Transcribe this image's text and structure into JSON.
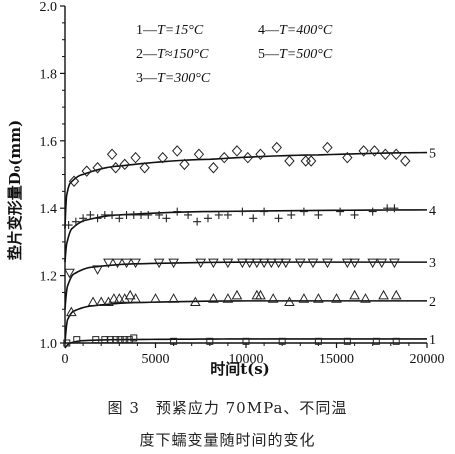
{
  "chart_data": {
    "type": "scatter",
    "xlabel": "时间t(s)",
    "ylabel": "垫片变形量D₀(mm)",
    "xlim": [
      0,
      20000
    ],
    "ylim": [
      1.0,
      2.0
    ],
    "x_ticks": [
      0,
      5000,
      10000,
      15000,
      20000
    ],
    "x_tick_labels": [
      "0",
      "5000",
      "10000",
      "15000",
      "20000"
    ],
    "y_ticks": [
      1.0,
      1.2,
      1.4,
      1.6,
      1.8,
      2.0
    ],
    "y_tick_labels": [
      "1.0",
      "1.2",
      "1.4",
      "1.6",
      "1.8",
      "2.0"
    ],
    "grid": false,
    "legend_position": "top",
    "series": [
      {
        "name": "1—T=15°C",
        "label": "1",
        "marker": "square",
        "points": [
          [
            100,
            1.0
          ],
          [
            650,
            1.01
          ],
          [
            1700,
            1.01
          ],
          [
            2200,
            1.01
          ],
          [
            2500,
            1.01
          ],
          [
            2800,
            1.01
          ],
          [
            3050,
            1.01
          ],
          [
            3300,
            1.01
          ],
          [
            3550,
            1.01
          ],
          [
            3800,
            1.015
          ],
          [
            6000,
            1.005
          ],
          [
            8000,
            1.005
          ],
          [
            10000,
            1.005
          ],
          [
            12000,
            1.005
          ],
          [
            14000,
            1.005
          ],
          [
            15600,
            1.005
          ],
          [
            17200,
            1.005
          ],
          [
            18300,
            1.005
          ]
        ],
        "curve": [
          [
            0,
            0.985
          ],
          [
            300,
            1.0
          ],
          [
            1000,
            1.007
          ],
          [
            3000,
            1.01
          ],
          [
            10000,
            1.012
          ],
          [
            20000,
            1.012
          ]
        ]
      },
      {
        "name": "2—T≈150°C",
        "label": "2",
        "marker": "triangle-up",
        "points": [
          [
            350,
            1.09
          ],
          [
            1550,
            1.12
          ],
          [
            2000,
            1.12
          ],
          [
            2400,
            1.12
          ],
          [
            2700,
            1.13
          ],
          [
            3000,
            1.13
          ],
          [
            3300,
            1.13
          ],
          [
            3600,
            1.14
          ],
          [
            3900,
            1.13
          ],
          [
            5000,
            1.13
          ],
          [
            6000,
            1.13
          ],
          [
            7200,
            1.12
          ],
          [
            8200,
            1.13
          ],
          [
            9000,
            1.13
          ],
          [
            9500,
            1.14
          ],
          [
            10600,
            1.14
          ],
          [
            10800,
            1.14
          ],
          [
            11500,
            1.13
          ],
          [
            12400,
            1.12
          ],
          [
            13200,
            1.13
          ],
          [
            14000,
            1.13
          ],
          [
            15000,
            1.13
          ],
          [
            16000,
            1.14
          ],
          [
            16600,
            1.13
          ],
          [
            17600,
            1.14
          ],
          [
            18300,
            1.14
          ]
        ],
        "curve": [
          [
            0,
            1.0
          ],
          [
            150,
            1.07
          ],
          [
            500,
            1.095
          ],
          [
            1500,
            1.11
          ],
          [
            4000,
            1.12
          ],
          [
            10000,
            1.125
          ],
          [
            20000,
            1.125
          ]
        ]
      },
      {
        "name": "3—T=300°C",
        "label": "3",
        "marker": "triangle-down",
        "points": [
          [
            250,
            1.21
          ],
          [
            1800,
            1.22
          ],
          [
            2400,
            1.24
          ],
          [
            2900,
            1.24
          ],
          [
            3400,
            1.24
          ],
          [
            3900,
            1.24
          ],
          [
            5200,
            1.24
          ],
          [
            6000,
            1.24
          ],
          [
            7500,
            1.24
          ],
          [
            8200,
            1.24
          ],
          [
            9000,
            1.24
          ],
          [
            9800,
            1.24
          ],
          [
            10200,
            1.24
          ],
          [
            10600,
            1.24
          ],
          [
            11000,
            1.24
          ],
          [
            11400,
            1.24
          ],
          [
            11800,
            1.24
          ],
          [
            12200,
            1.24
          ],
          [
            13000,
            1.24
          ],
          [
            13700,
            1.24
          ],
          [
            14500,
            1.24
          ],
          [
            15600,
            1.24
          ],
          [
            16000,
            1.24
          ],
          [
            17000,
            1.24
          ],
          [
            17500,
            1.24
          ],
          [
            18200,
            1.24
          ]
        ],
        "curve": [
          [
            0,
            1.1
          ],
          [
            150,
            1.17
          ],
          [
            500,
            1.205
          ],
          [
            1500,
            1.225
          ],
          [
            4000,
            1.235
          ],
          [
            10000,
            1.24
          ],
          [
            20000,
            1.24
          ]
        ]
      },
      {
        "name": "4—T=400°C",
        "label": "4",
        "marker": "plus",
        "points": [
          [
            200,
            1.35
          ],
          [
            600,
            1.36
          ],
          [
            1000,
            1.37
          ],
          [
            1400,
            1.38
          ],
          [
            1800,
            1.37
          ],
          [
            2200,
            1.38
          ],
          [
            2600,
            1.38
          ],
          [
            3000,
            1.37
          ],
          [
            3400,
            1.38
          ],
          [
            3800,
            1.38
          ],
          [
            4200,
            1.38
          ],
          [
            4600,
            1.38
          ],
          [
            5200,
            1.38
          ],
          [
            5600,
            1.37
          ],
          [
            6200,
            1.39
          ],
          [
            6800,
            1.38
          ],
          [
            7300,
            1.36
          ],
          [
            7900,
            1.37
          ],
          [
            8500,
            1.38
          ],
          [
            9000,
            1.38
          ],
          [
            9800,
            1.39
          ],
          [
            10400,
            1.37
          ],
          [
            11000,
            1.39
          ],
          [
            11800,
            1.37
          ],
          [
            12500,
            1.38
          ],
          [
            13200,
            1.39
          ],
          [
            14000,
            1.38
          ],
          [
            15200,
            1.39
          ],
          [
            16000,
            1.38
          ],
          [
            17000,
            1.39
          ],
          [
            17800,
            1.4
          ],
          [
            18200,
            1.4
          ]
        ],
        "curve": [
          [
            0,
            1.24
          ],
          [
            120,
            1.3
          ],
          [
            400,
            1.34
          ],
          [
            1200,
            1.365
          ],
          [
            3000,
            1.38
          ],
          [
            8000,
            1.39
          ],
          [
            20000,
            1.395
          ]
        ]
      },
      {
        "name": "5—T=500°C",
        "label": "5",
        "marker": "diamond",
        "points": [
          [
            500,
            1.48
          ],
          [
            1200,
            1.51
          ],
          [
            1800,
            1.52
          ],
          [
            2600,
            1.56
          ],
          [
            2800,
            1.52
          ],
          [
            3300,
            1.53
          ],
          [
            3900,
            1.55
          ],
          [
            4400,
            1.52
          ],
          [
            5400,
            1.55
          ],
          [
            6200,
            1.57
          ],
          [
            6600,
            1.53
          ],
          [
            7400,
            1.56
          ],
          [
            8200,
            1.52
          ],
          [
            8800,
            1.55
          ],
          [
            9500,
            1.57
          ],
          [
            10100,
            1.55
          ],
          [
            10800,
            1.56
          ],
          [
            11700,
            1.58
          ],
          [
            12400,
            1.54
          ],
          [
            13300,
            1.54
          ],
          [
            13600,
            1.54
          ],
          [
            14500,
            1.58
          ],
          [
            15600,
            1.55
          ],
          [
            16500,
            1.57
          ],
          [
            17100,
            1.57
          ],
          [
            17700,
            1.56
          ],
          [
            18300,
            1.56
          ],
          [
            18800,
            1.54
          ]
        ],
        "curve": [
          [
            0,
            1.34
          ],
          [
            100,
            1.44
          ],
          [
            300,
            1.475
          ],
          [
            1000,
            1.5
          ],
          [
            3000,
            1.525
          ],
          [
            8000,
            1.545
          ],
          [
            14000,
            1.558
          ],
          [
            20000,
            1.565
          ]
        ]
      }
    ]
  },
  "legend": {
    "entries": [
      {
        "num": "1—",
        "text": "T=15°C"
      },
      {
        "num": "2—",
        "text": "T≈150°C"
      },
      {
        "num": "3—",
        "text": "T=300°C"
      },
      {
        "num": "4—",
        "text": "T=400°C"
      },
      {
        "num": "5—",
        "text": "T=500°C"
      }
    ]
  },
  "caption": {
    "line1": "图 3　预紧应力 70MPa、不同温",
    "line2": "度下蠕变量随时间的变化"
  }
}
